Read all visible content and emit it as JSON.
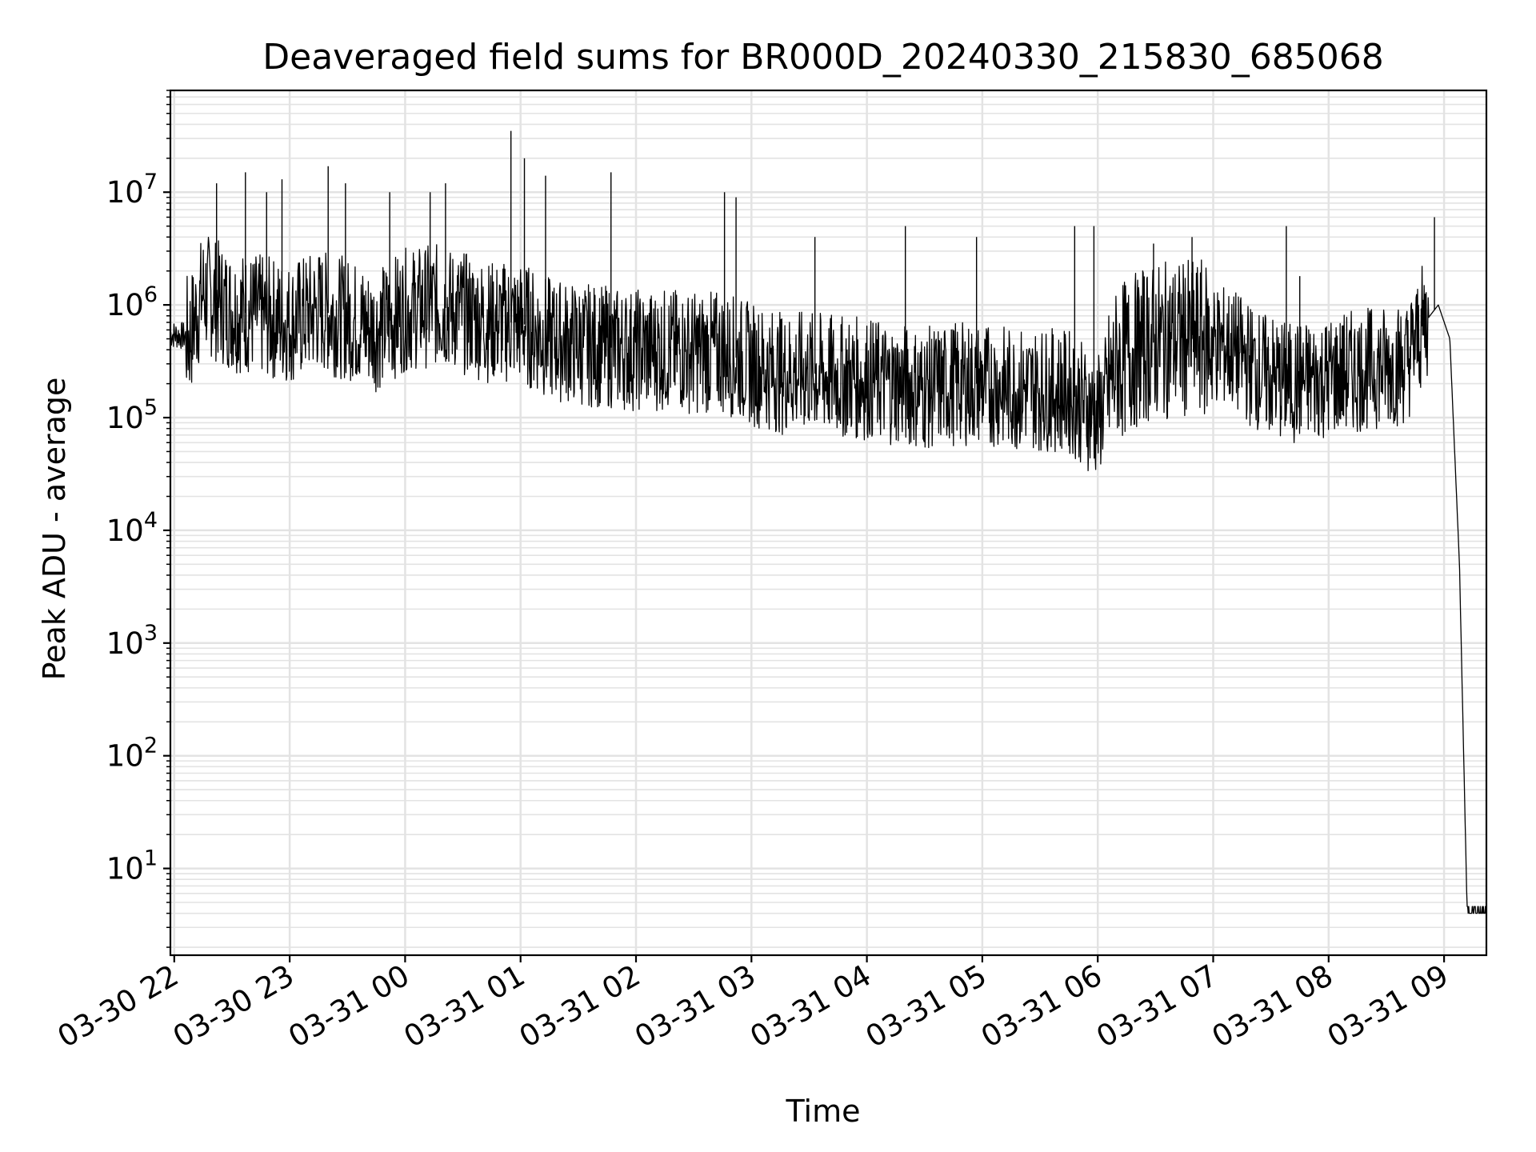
{
  "chart_data": {
    "type": "line",
    "title": "Deaveraged field sums for BR000D_20240330_215830_685068",
    "xlabel": "Time",
    "ylabel": "Peak ADU - average",
    "yscale": "log",
    "ylim": [
      1.7,
      80000000
    ],
    "xlim": [
      "2024-03-30 21:58",
      "2024-03-31 09:22"
    ],
    "grid": true,
    "x_tick_labels": [
      "03-30 22",
      "03-30 23",
      "03-31 00",
      "03-31 01",
      "03-31 02",
      "03-31 03",
      "03-31 04",
      "03-31 05",
      "03-31 06",
      "03-31 07",
      "03-31 08",
      "03-31 09"
    ],
    "y_ticks": [
      {
        "base": "10",
        "exp": "1",
        "value": 10
      },
      {
        "base": "10",
        "exp": "2",
        "value": 100
      },
      {
        "base": "10",
        "exp": "3",
        "value": 1000
      },
      {
        "base": "10",
        "exp": "4",
        "value": 10000
      },
      {
        "base": "10",
        "exp": "5",
        "value": 100000
      },
      {
        "base": "10",
        "exp": "6",
        "value": 1000000
      },
      {
        "base": "10",
        "exp": "7",
        "value": 10000000
      }
    ],
    "series": [
      {
        "color": "#000000",
        "x": [
          "2024-03-30 21:58",
          "2024-03-30 22:08",
          "2024-03-30 22:15",
          "2024-03-30 22:30",
          "2024-03-30 22:45",
          "2024-03-30 23:00",
          "2024-03-30 23:15",
          "2024-03-30 23:30",
          "2024-03-30 23:45",
          "2024-03-31 00:00",
          "2024-03-31 00:15",
          "2024-03-31 00:30",
          "2024-03-31 00:45",
          "2024-03-31 01:00",
          "2024-03-31 01:15",
          "2024-03-31 01:30",
          "2024-03-31 01:45",
          "2024-03-31 02:00",
          "2024-03-31 02:15",
          "2024-03-31 02:30",
          "2024-03-31 02:45",
          "2024-03-31 03:00",
          "2024-03-31 03:15",
          "2024-03-31 03:30",
          "2024-03-31 03:45",
          "2024-03-31 04:00",
          "2024-03-31 04:15",
          "2024-03-31 04:30",
          "2024-03-31 04:45",
          "2024-03-31 05:00",
          "2024-03-31 05:15",
          "2024-03-31 05:30",
          "2024-03-31 05:45",
          "2024-03-31 06:00",
          "2024-03-31 06:10",
          "2024-03-31 06:25",
          "2024-03-31 06:40",
          "2024-03-31 06:55",
          "2024-03-31 07:10",
          "2024-03-31 07:25",
          "2024-03-31 07:40",
          "2024-03-31 07:55",
          "2024-03-31 08:10",
          "2024-03-31 08:25",
          "2024-03-31 08:40",
          "2024-03-31 08:50",
          "2024-03-31 08:57",
          "2024-03-31 09:03",
          "2024-03-31 09:08",
          "2024-03-31 09:12",
          "2024-03-31 09:15",
          "2024-03-31 09:22"
        ],
        "y": [
          550000,
          520000,
          1300000,
          900000,
          800000,
          700000,
          900000,
          750000,
          600000,
          900000,
          1000000,
          850000,
          700000,
          700000,
          500000,
          450000,
          420000,
          400000,
          400000,
          380000,
          380000,
          300000,
          250000,
          250000,
          230000,
          220000,
          200000,
          180000,
          200000,
          200000,
          180000,
          180000,
          170000,
          100000,
          300000,
          450000,
          500000,
          500000,
          400000,
          250000,
          200000,
          220000,
          250000,
          280000,
          300000,
          700000,
          1000000,
          500000,
          5000,
          4,
          4,
          4
        ],
        "spikes": [
          [
            "2024-03-30 22:22",
            12000000
          ],
          [
            "2024-03-30 22:37",
            15000000
          ],
          [
            "2024-03-30 22:48",
            10000000
          ],
          [
            "2024-03-30 22:56",
            13000000
          ],
          [
            "2024-03-30 23:20",
            17000000
          ],
          [
            "2024-03-30 23:29",
            12000000
          ],
          [
            "2024-03-30 23:52",
            10000000
          ],
          [
            "2024-03-31 00:13",
            10000000
          ],
          [
            "2024-03-31 00:21",
            12000000
          ],
          [
            "2024-03-31 00:55",
            35000000
          ],
          [
            "2024-03-31 01:02",
            20000000
          ],
          [
            "2024-03-31 01:13",
            14000000
          ],
          [
            "2024-03-31 01:47",
            15000000
          ],
          [
            "2024-03-31 02:46",
            10000000
          ],
          [
            "2024-03-31 02:52",
            9000000
          ],
          [
            "2024-03-31 03:33",
            4000000
          ],
          [
            "2024-03-31 04:20",
            5000000
          ],
          [
            "2024-03-31 04:57",
            4000000
          ],
          [
            "2024-03-31 05:48",
            5000000
          ],
          [
            "2024-03-31 05:58",
            5000000
          ],
          [
            "2024-03-31 06:29",
            3500000
          ],
          [
            "2024-03-31 06:49",
            4000000
          ],
          [
            "2024-03-31 07:38",
            5000000
          ],
          [
            "2024-03-31 07:45",
            1800000
          ],
          [
            "2024-03-31 08:55",
            6000000
          ]
        ]
      }
    ]
  }
}
